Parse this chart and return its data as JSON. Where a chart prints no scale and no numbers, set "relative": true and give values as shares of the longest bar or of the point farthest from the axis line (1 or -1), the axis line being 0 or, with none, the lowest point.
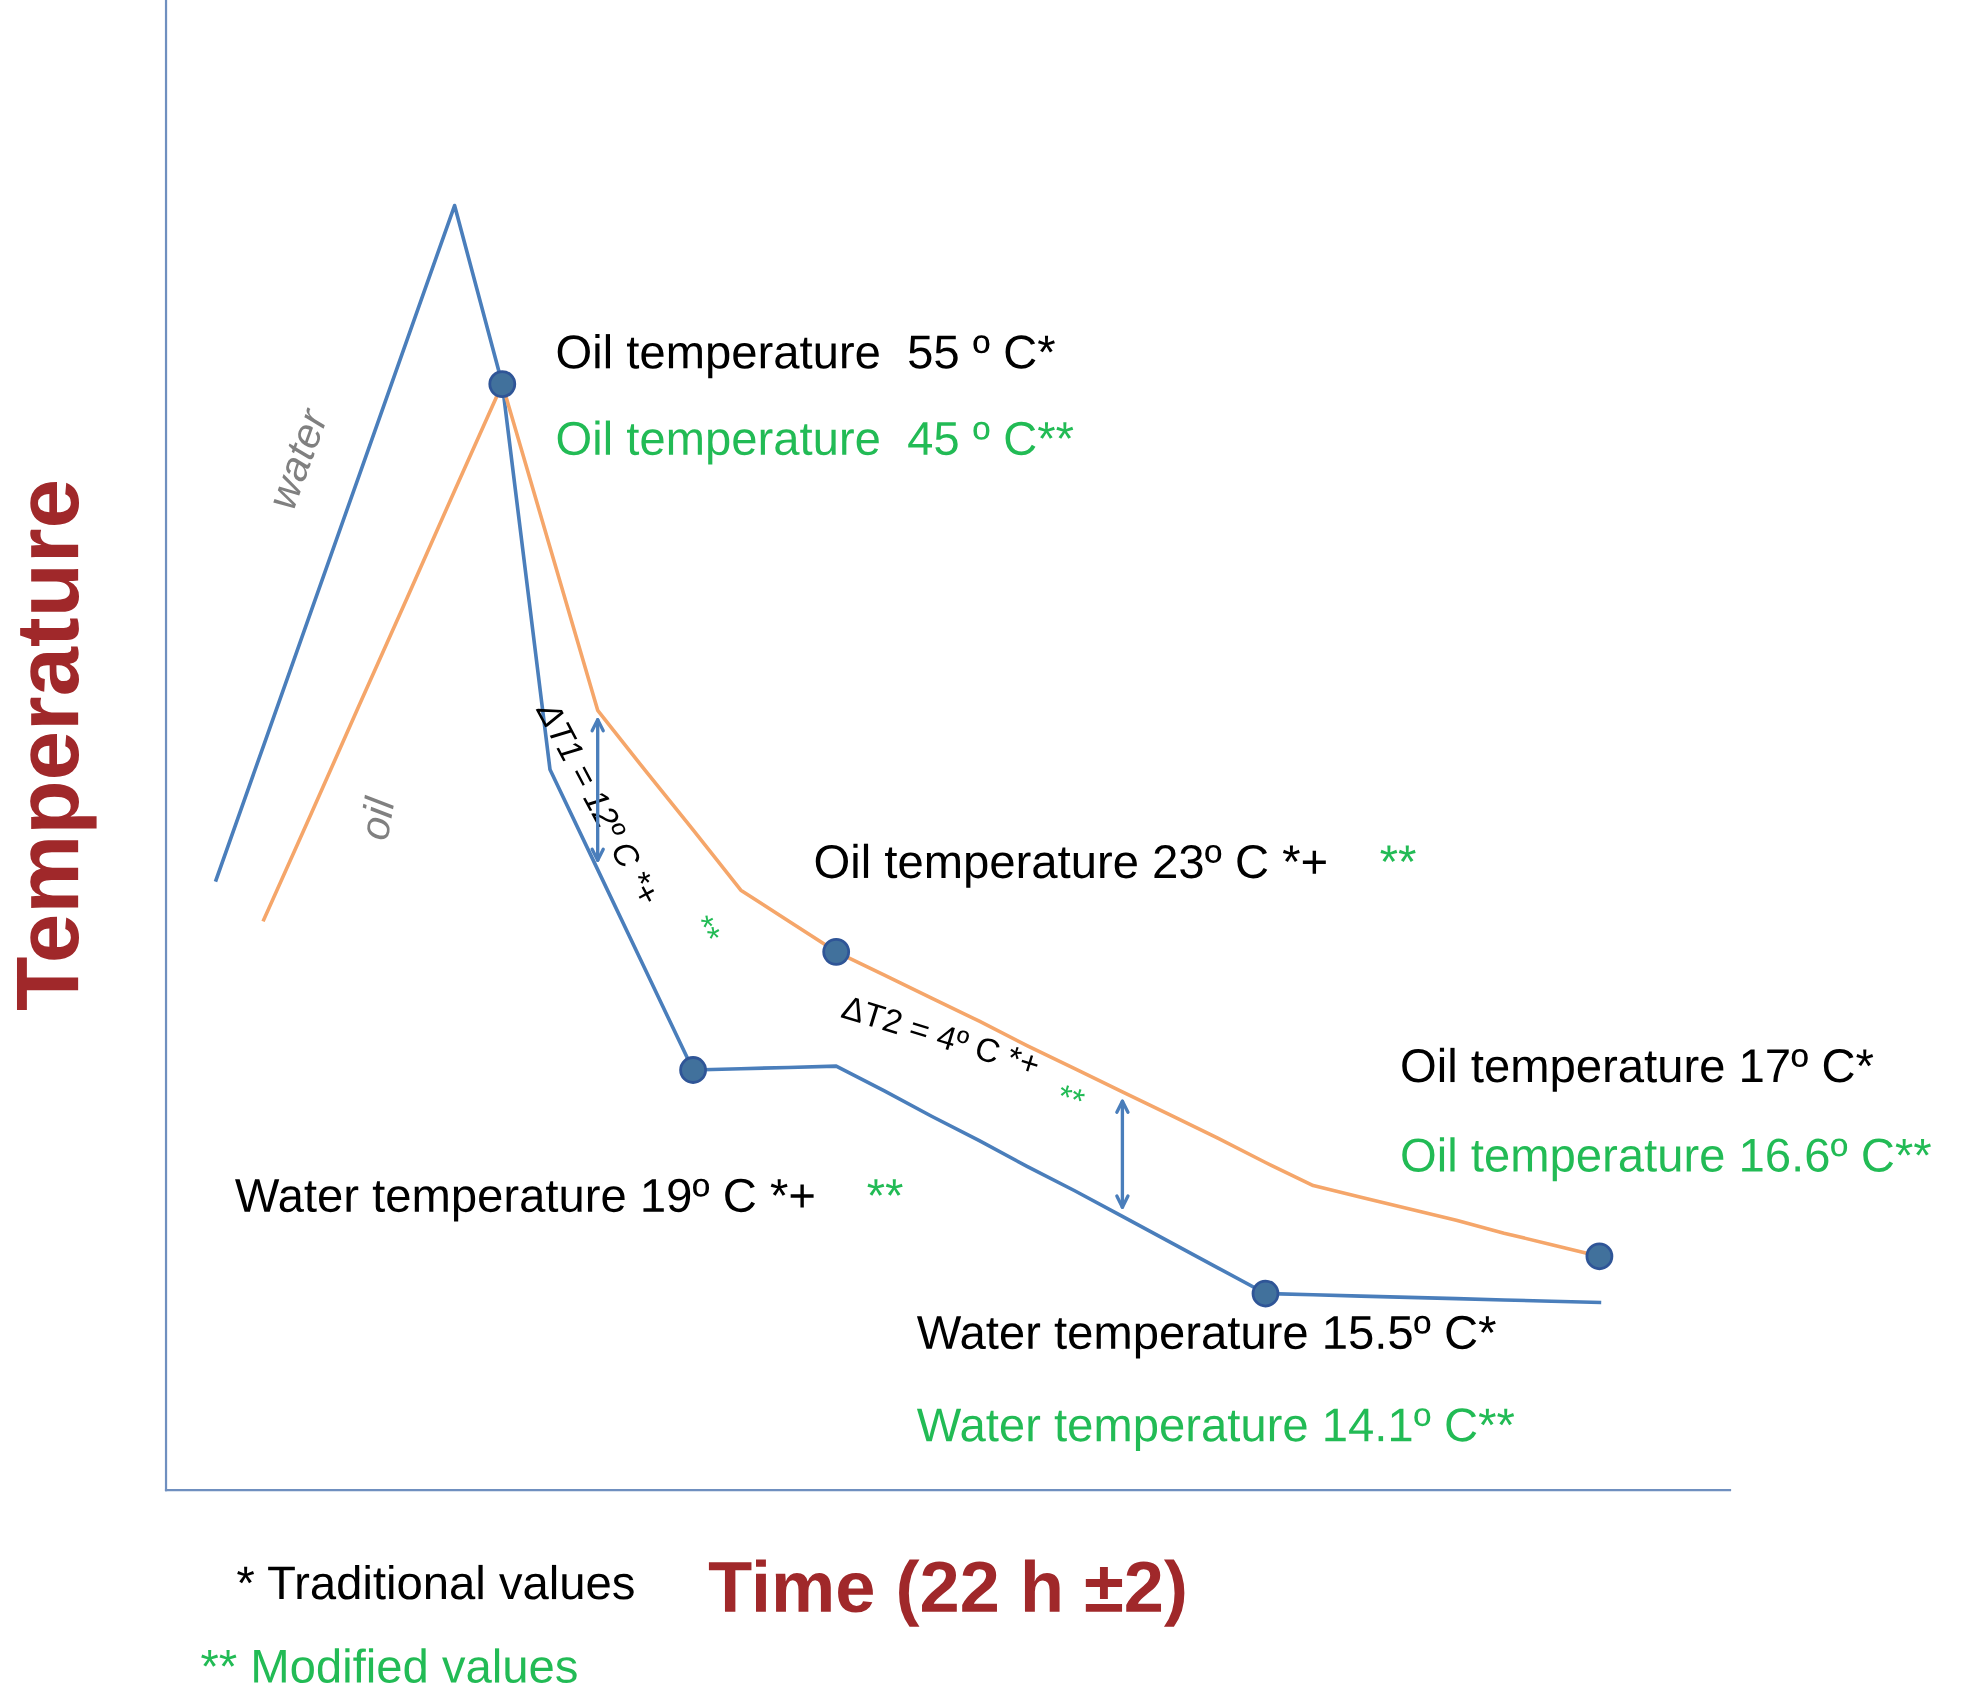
{
  "chart_data": {
    "type": "line",
    "relative": true,
    "xlabel": "Time (22 h ±2)",
    "ylabel": "Temperature",
    "tick_labels": false,
    "grid": false,
    "categories": [
      null,
      null,
      null,
      null,
      null,
      null,
      null,
      null,
      null,
      null,
      null,
      null,
      null,
      null,
      null,
      null,
      null,
      null,
      null,
      null,
      null,
      null,
      null,
      null,
      null,
      null,
      null,
      null,
      null,
      null
    ],
    "series": [
      {
        "color": "#4a7ebb",
        "values": [
          0.475,
          0.58,
          0.685,
          0.79,
          0.895,
          1,
          0.861,
          0.561,
          0.483,
          0.405,
          0.327,
          0.328,
          0.329,
          0.33,
          0.311,
          0.291,
          0.272,
          0.252,
          0.233,
          0.213,
          0.193,
          0.173,
          0.153,
          0.152,
          0.151,
          0.15,
          0.149,
          0.148,
          0.147,
          0.146
        ]
      },
      {
        "color": "#f5a66a",
        "values": [
          null,
          0.444,
          0.527,
          0.611,
          0.694,
          0.778,
          0.861,
          0.734,
          0.607,
          0.56,
          0.514,
          0.467,
          0.443,
          0.419,
          0.401,
          0.383,
          0.365,
          0.346,
          0.328,
          0.31,
          0.292,
          0.274,
          0.255,
          0.237,
          0.228,
          0.219,
          0.21,
          0.2,
          0.191,
          0.182
        ]
      }
    ],
    "annotations": [
      "Oil temperature  55 º C*",
      "Oil temperature  45 º C**",
      "Oil temperature 23º C *+",
      "**",
      "Oil temperature 17º C*",
      "Oil temperature 16.6º C**",
      "Water temperature 19º C *+",
      "**",
      "Water temperature 15.5º C*",
      "Water temperature 14.1º C**",
      "water",
      "oil",
      "ΔT1 = 12º C *+",
      "**",
      "ΔT2 = 4º C *+",
      "**",
      "* Traditional values",
      "** Modified values"
    ]
  }
}
